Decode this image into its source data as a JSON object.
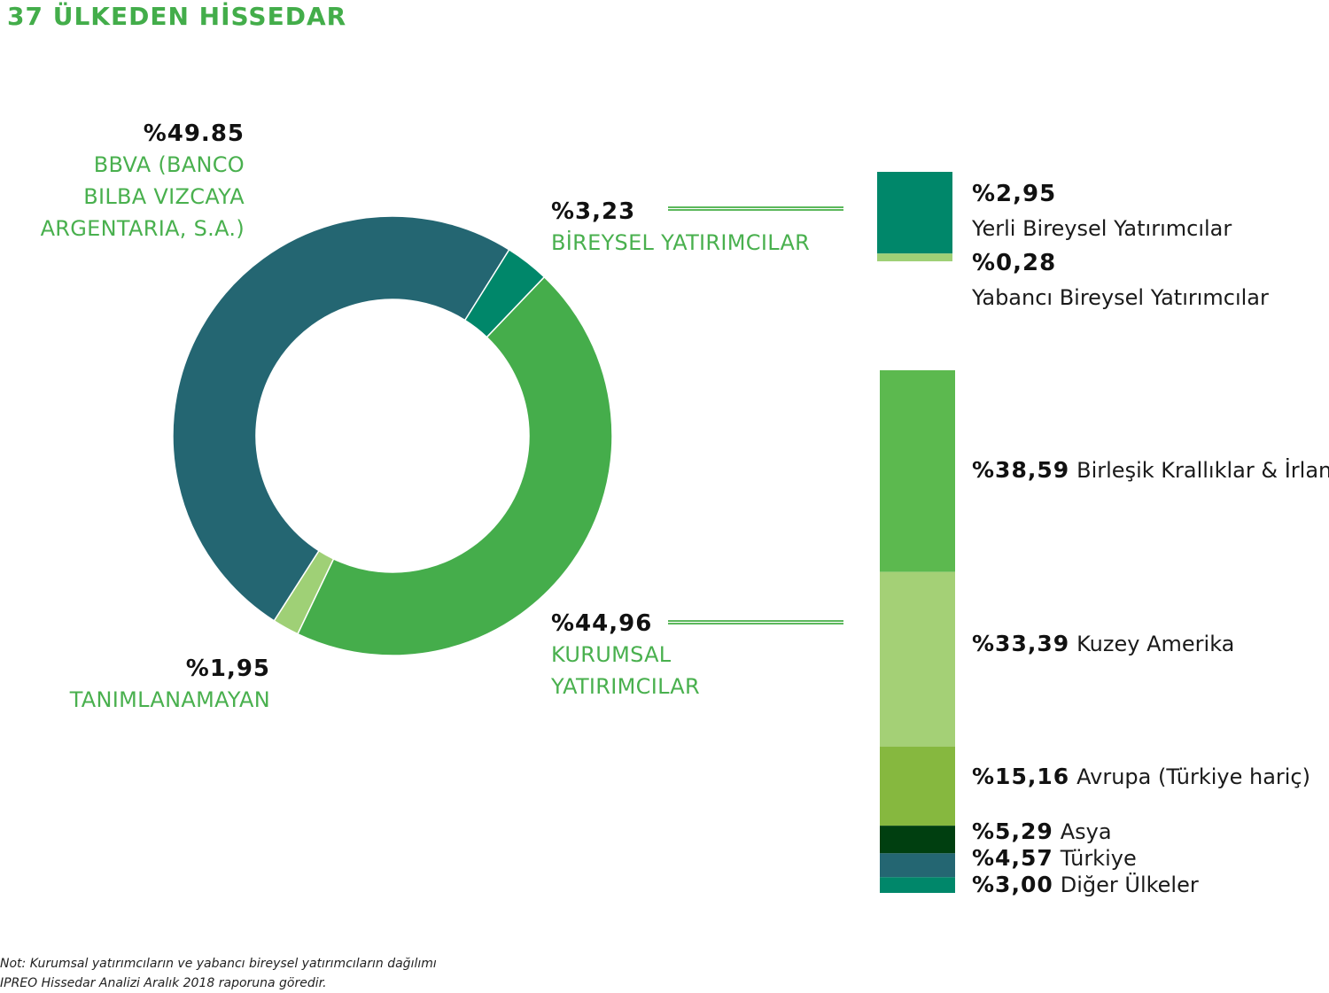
{
  "title": "37 ÜLKEDEN HİSSEDAR",
  "colors": {
    "bbva": "#246672",
    "bireysel": "#00876a",
    "kurumsal": "#45ad4b",
    "tanimlanamayan": "#9fd076",
    "accent_text": "#49b04e"
  },
  "donut": {
    "bbva": {
      "pct": "%49.85",
      "label_lines": [
        "BBVA (BANCO",
        "BILBA VIZCAYA",
        "ARGENTARIA, S.A.)"
      ]
    },
    "bireysel": {
      "pct": "%3,23",
      "label": "BİREYSEL YATIRIMCILAR"
    },
    "kurumsal": {
      "pct": "%44,96",
      "label_lines": [
        "KURUMSAL",
        "YATIRIMCILAR"
      ]
    },
    "tanimlanamayan": {
      "pct": "%1,95",
      "label": "TANIMLANAMAYAN"
    }
  },
  "bireysel_breakdown": [
    {
      "pct": "%2,95",
      "label": "Yerli Bireysel Yatırımcılar",
      "color": "#00876a"
    },
    {
      "pct": "%0,28",
      "label": "Yabancı Bireysel Yatırımcılar",
      "color": "#9fd076"
    }
  ],
  "kurumsal_breakdown": [
    {
      "pct": "%38,59",
      "label": "Birleşik Krallıklar & İrlanda",
      "color": "#5cb94f"
    },
    {
      "pct": "%33,39",
      "label": "Kuzey Amerika",
      "color": "#a4d076"
    },
    {
      "pct": "%15,16",
      "label": "Avrupa (Türkiye hariç)",
      "color": "#86b83f"
    },
    {
      "pct": "%5,29",
      "label": "Asya",
      "color": "#003f10"
    },
    {
      "pct": "%4,57",
      "label": "Türkiye",
      "color": "#246672"
    },
    {
      "pct": "%3,00",
      "label": "Diğer Ülkeler",
      "color": "#00876a"
    }
  ],
  "note_lines": [
    "Not: Kurumsal yatırımcıların ve yabancı bireysel yatırımcıların dağılımı",
    "IPREO Hissedar Analizi Aralık 2018 raporuna göredir."
  ],
  "chart_data": [
    {
      "type": "pie",
      "categories": [
        "BBVA (BANCO BILBA VIZCAYA ARGENTARIA, S.A.)",
        "BİREYSEL YATIRIMCILAR",
        "KURUMSAL YATIRIMCILAR",
        "TANIMLANAMAYAN"
      ],
      "values": [
        49.85,
        3.23,
        44.96,
        1.95
      ]
    },
    {
      "type": "bar",
      "categories": [
        "Yerli Bireysel Yatırımcılar",
        "Yabancı Bireysel Yatırımcılar"
      ],
      "values": [
        2.95,
        0.28
      ]
    },
    {
      "type": "bar",
      "categories": [
        "Birleşik Krallıklar & İrlanda",
        "Kuzey Amerika",
        "Avrupa (Türkiye hariç)",
        "Asya",
        "Türkiye",
        "Diğer Ülkeler"
      ],
      "values": [
        38.59,
        33.39,
        15.16,
        5.29,
        4.57,
        3.0
      ]
    }
  ]
}
